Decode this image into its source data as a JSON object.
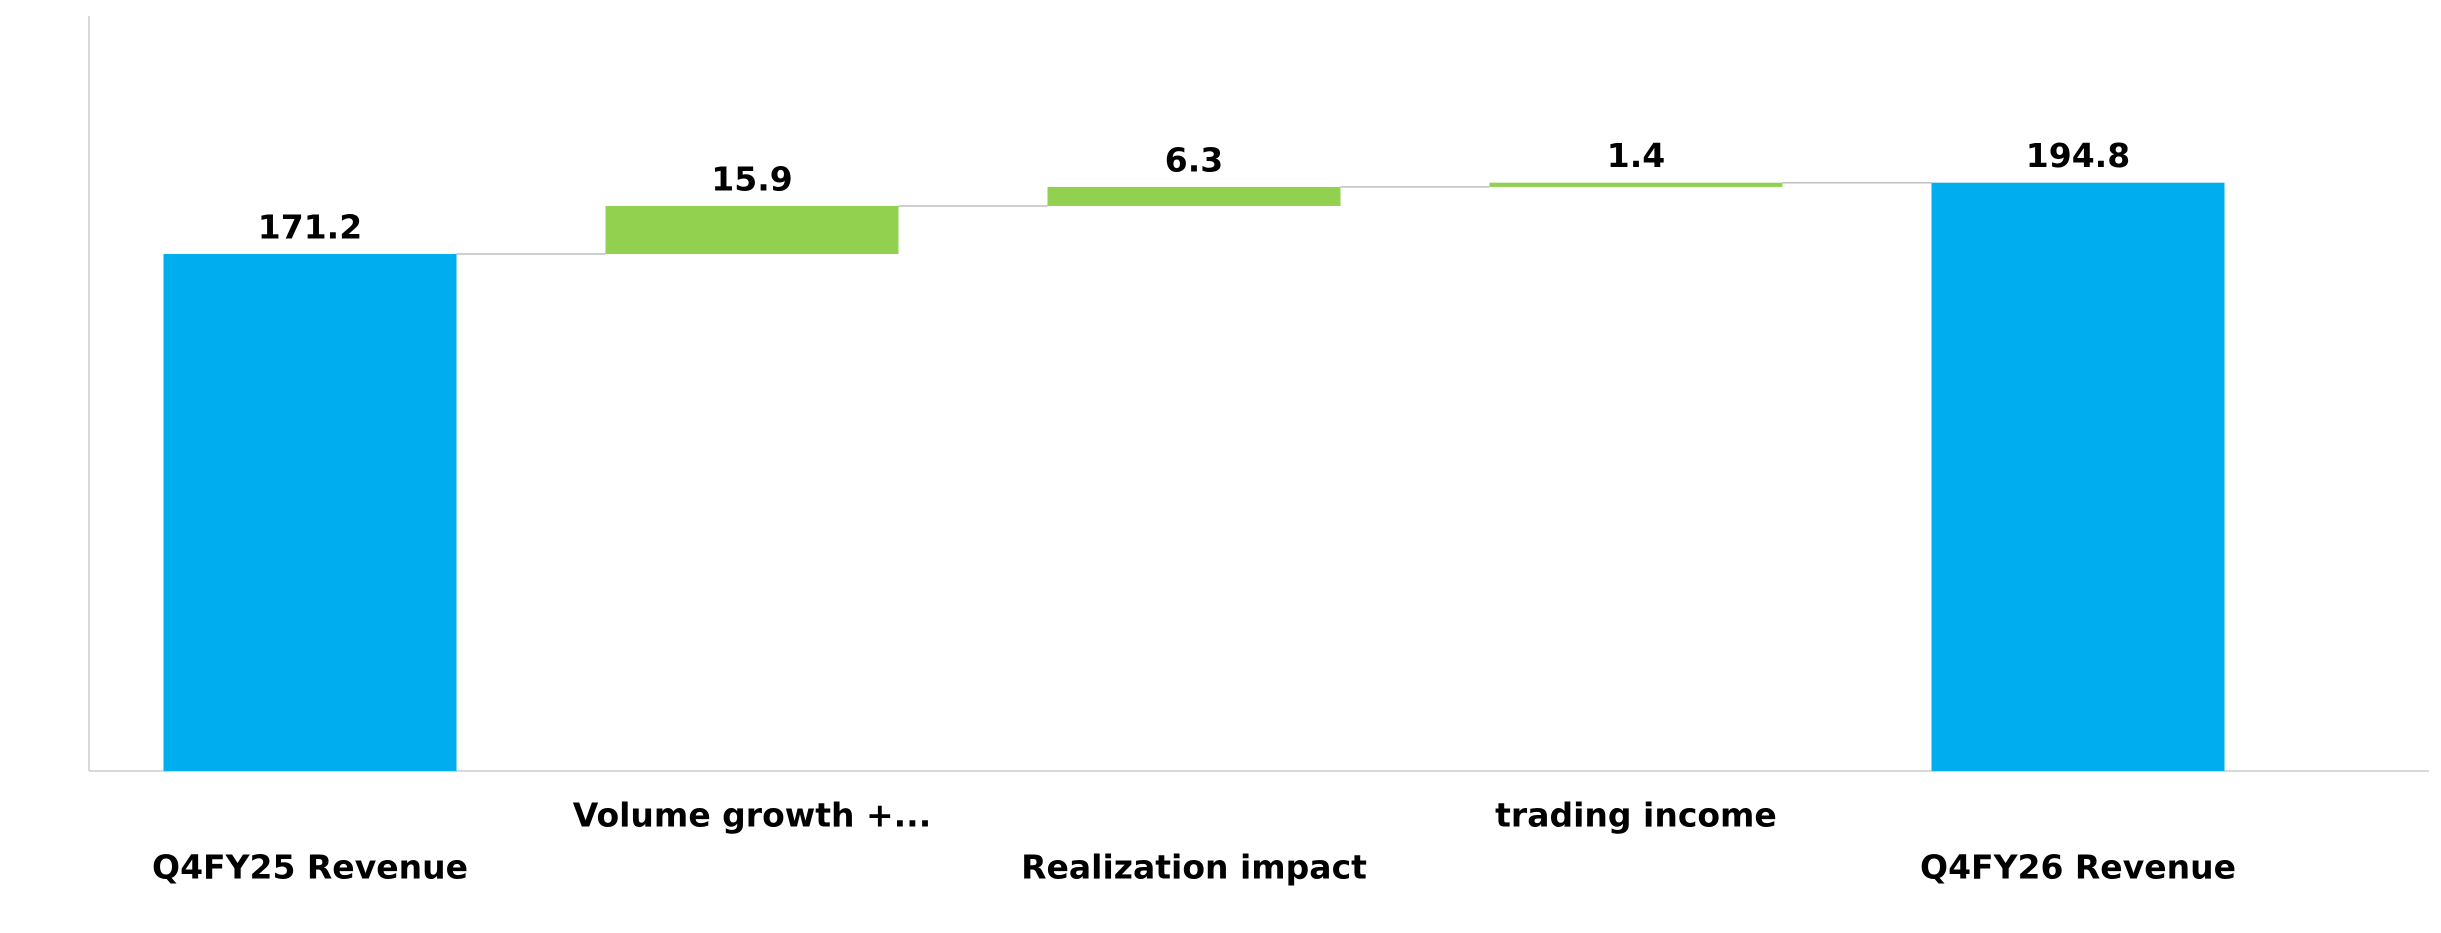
{
  "chart_data": {
    "type": "waterfall",
    "categories": [
      "Q4FY25 Revenue",
      "Volume growth +...",
      "Realization impact",
      "trading income",
      "Q4FY26 Revenue"
    ],
    "values": [
      171.2,
      15.9,
      6.3,
      1.4,
      194.8
    ],
    "totals": [
      true,
      false,
      false,
      false,
      true
    ],
    "total_color": "#00adef",
    "increase_color": "#92d050",
    "ylim": [
      0,
      250
    ]
  }
}
